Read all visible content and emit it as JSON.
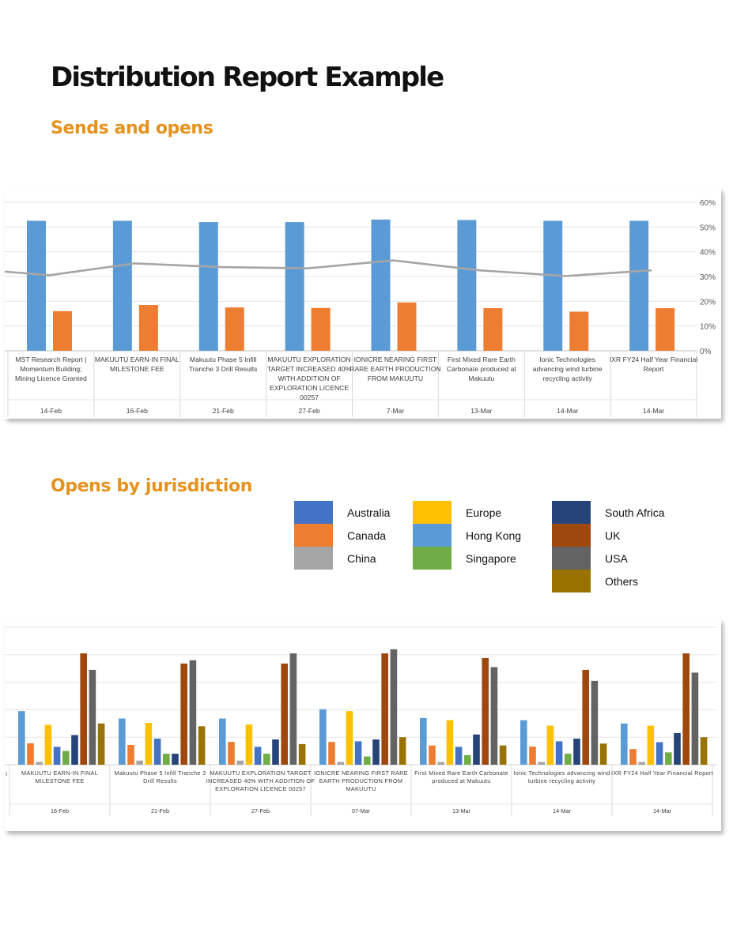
{
  "page": {
    "title": "Distribution Report Example",
    "section_sends": "Sends and opens",
    "section_jurisdiction": "Opens by jurisdiction"
  },
  "legend": [
    {
      "label": "Australia",
      "color": "#4472c4"
    },
    {
      "label": "Canada",
      "color": "#ed7d31"
    },
    {
      "label": "China",
      "color": "#a5a5a5"
    },
    {
      "label": "Europe",
      "color": "#ffc000"
    },
    {
      "label": "Hong Kong",
      "color": "#5b9bd5"
    },
    {
      "label": "Singapore",
      "color": "#70ad47"
    },
    {
      "label": "South Africa",
      "color": "#264478"
    },
    {
      "label": "UK",
      "color": "#9e480e"
    },
    {
      "label": "USA",
      "color": "#636363"
    },
    {
      "label": "Others",
      "color": "#997300"
    }
  ],
  "chart_data": [
    {
      "type": "bar",
      "y_ticks": [
        "0%",
        "10%",
        "20%",
        "30%",
        "40%",
        "50%",
        "60%"
      ],
      "ylim": [
        0,
        60
      ],
      "grid": true,
      "categories": [
        {
          "label": "MST Research Report | Momentum Building; Mining Licence Granted",
          "lines": [
            "MST Research Report |",
            "Momentum Building;",
            "Mining Licence Granted"
          ],
          "date": "14-Feb"
        },
        {
          "label": "MAKUUTU EARN-IN FINAL MILESTONE FEE",
          "lines": [
            "MAKUUTU EARN-IN FINAL",
            "MILESTONE FEE"
          ],
          "date": "16-Feb"
        },
        {
          "label": "Makuutu Phase 5 Infill Tranche 3 Drill Results",
          "lines": [
            "Makuutu Phase 5 Infill",
            "Tranche 3 Drill Results"
          ],
          "date": "21-Feb"
        },
        {
          "label": "MAKUUTU EXPLORATION TARGET INCREASED 40% WITH ADDITION OF EXPLORATION LICENCE 00257",
          "lines": [
            "MAKUUTU EXPLORATION",
            "TARGET INCREASED 40%",
            "WITH ADDITION OF",
            "EXPLORATION LICENCE",
            "00257"
          ],
          "date": "27-Feb"
        },
        {
          "label": "IONICRE NEARING FIRST RARE EARTH PRODUCTION FROM MAKUUTU",
          "lines": [
            "IONICRE NEARING FIRST",
            "RARE EARTH PRODUCTION",
            "FROM MAKUUTU"
          ],
          "date": "7-Mar"
        },
        {
          "label": "First Mixed Rare Earth Carbonate produced at Makuutu",
          "lines": [
            "First Mixed Rare Earth",
            "Carbonate produced at",
            "Makuutu"
          ],
          "date": "13-Mar"
        },
        {
          "label": "Ionic Technologies advancing wind turbine recycling activity",
          "lines": [
            "Ionic Technologies",
            "advancing wind turbine",
            "recycling activity"
          ],
          "date": "14-Mar"
        },
        {
          "label": "IXR FY24 Half Year Financial Report",
          "lines": [
            "IXR FY24 Half Year Financial",
            "Report"
          ],
          "date": "14-Mar"
        }
      ],
      "series": [
        {
          "color": "#5b9bd5",
          "kind": "bar",
          "values": [
            52.5,
            52.5,
            52,
            52,
            53,
            52.8,
            52.5,
            52.5
          ]
        },
        {
          "color": "#ed7d31",
          "kind": "bar",
          "values": [
            16,
            18.5,
            17.5,
            17.3,
            19.5,
            17.2,
            15.8,
            17.2
          ]
        },
        {
          "color": "#a5a5a5",
          "kind": "line",
          "values": [
            30.5,
            35.3,
            33.8,
            33.3,
            36.5,
            32.5,
            30.2,
            32.5
          ],
          "line_start_value": 32
        }
      ]
    },
    {
      "type": "bar",
      "grid": true,
      "ylim": [
        0,
        50
      ],
      "categories": [
        {
          "label": "MAKUUTU EARN-IN FINAL MILESTONE FEE",
          "lines": [
            "MAKUUTU EARN-IN FINAL",
            "MILESTONE FEE"
          ],
          "date": "16-Feb"
        },
        {
          "label": "Makuutu Phase 5 Infill Tranche 3 Drill Results",
          "lines": [
            "Makuutu Phase 5 Infill Tranche 3",
            "Drill Results"
          ],
          "date": "21-Feb"
        },
        {
          "label": "MAKUUTU EXPLORATION TARGET INCREASED 40% WITH ADDITION OF EXPLORATION LICENCE 00257",
          "lines": [
            "MAKUUTU EXPLORATION TARGET",
            "INCREASED 40% WITH ADDITION OF",
            "EXPLORATION LICENCE 00257"
          ],
          "date": "27-Feb"
        },
        {
          "label": "IONICRE NEARING FIRST RARE EARTH PRODUCTION FROM MAKUUTU",
          "lines": [
            "IONICRE NEARING FIRST RARE",
            "EARTH PRODUCTION FROM",
            "MAKUUTU"
          ],
          "date": "07-Mar"
        },
        {
          "label": "First Mixed Rare Earth Carbonate produced at Makuutu",
          "lines": [
            "First Mixed Rare Earth Carbonate",
            "produced at Makuutu"
          ],
          "date": "13-Mar"
        },
        {
          "label": "Ionic Technologies advancing wind turbine recycling activity",
          "lines": [
            "Ionic Technologies advancing wind",
            "turbine recycling activity"
          ],
          "date": "14-Mar"
        },
        {
          "label": "IXR FY24 Half Year Financial Report",
          "lines": [
            "IXR FY24 Half Year Financial Report"
          ],
          "date": "14-Mar"
        }
      ],
      "edge_tick_label": "ı",
      "series": [
        {
          "name": "Hong Kong",
          "color": "#5b9bd5",
          "values": [
            19.5,
            16.8,
            16.8,
            20.2,
            17,
            16.2,
            15
          ]
        },
        {
          "name": "Canada",
          "color": "#ed7d31",
          "values": [
            7.8,
            7.2,
            8.3,
            8.3,
            7,
            6.6,
            5.7
          ]
        },
        {
          "name": "China",
          "color": "#a5a5a5",
          "values": [
            1,
            1.5,
            1.5,
            1,
            1,
            1,
            1
          ]
        },
        {
          "name": "Europe",
          "color": "#ffc000",
          "values": [
            14.5,
            15.2,
            14.6,
            19.5,
            16.2,
            14.2,
            14.2
          ]
        },
        {
          "name": "Australia",
          "color": "#4472c4",
          "values": [
            6.5,
            9.5,
            6.5,
            8.5,
            6.5,
            8.5,
            8.2
          ]
        },
        {
          "name": "Singapore",
          "color": "#70ad47",
          "values": [
            5,
            4,
            4,
            3,
            3.5,
            4,
            4.5
          ]
        },
        {
          "name": "South Africa",
          "color": "#264478",
          "values": [
            10.8,
            4,
            9.2,
            9.2,
            11,
            9.5,
            11.5
          ]
        },
        {
          "name": "UK",
          "color": "#9e480e",
          "values": [
            40.5,
            36.8,
            36.8,
            40.5,
            38.8,
            34.5,
            40.5
          ]
        },
        {
          "name": "USA",
          "color": "#636363",
          "values": [
            34.5,
            38,
            40.5,
            42,
            35.5,
            30.5,
            33.5
          ]
        },
        {
          "name": "Others",
          "color": "#997300",
          "values": [
            15,
            14,
            7.5,
            10,
            7,
            7.7,
            10
          ]
        }
      ]
    }
  ]
}
